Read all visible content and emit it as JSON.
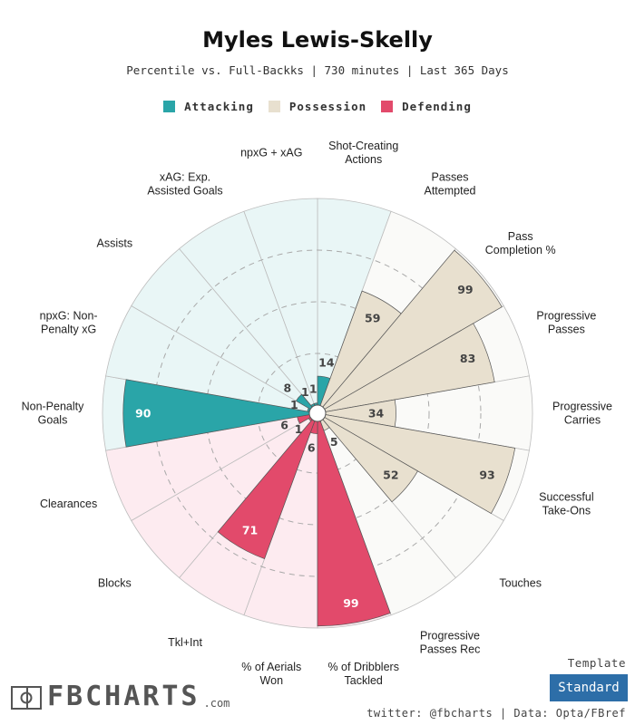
{
  "title": "Myles Lewis-Skelly",
  "subtitle": "Percentile vs. Full-Backks | 730 minutes | Last 365 Days",
  "legend": [
    {
      "label": "Attacking",
      "color": "#2aa5a8"
    },
    {
      "label": "Possession",
      "color": "#e8e0cf"
    },
    {
      "label": "Defending",
      "color": "#e24a6b"
    }
  ],
  "template": {
    "label": "Template",
    "value": "Standard"
  },
  "logo": {
    "text": "FBCHARTS",
    "suffix": ".com"
  },
  "credits": "twitter: @fbcharts | Data: Opta/FBref",
  "colors": {
    "attacking_fill": "#2aa5a8",
    "attacking_bg": "#e9f6f6",
    "possession_fill": "#e8e0cf",
    "possession_bg": "#fafaf8",
    "defending_fill": "#e24a6b",
    "defending_bg": "#fdebf0"
  },
  "chart_data": {
    "type": "polar-bar",
    "scale": [
      0,
      100
    ],
    "grid": "dashed rings at 25, 50, 75",
    "categories": [
      {
        "label": [
          "Shot-Creating",
          "Actions"
        ],
        "value": 14,
        "group": "Attacking"
      },
      {
        "label": [
          "Passes",
          "Attempted"
        ],
        "value": 59,
        "group": "Possession"
      },
      {
        "label": [
          "Pass",
          "Completion %"
        ],
        "value": 99,
        "group": "Possession"
      },
      {
        "label": [
          "Progressive",
          "Passes"
        ],
        "value": 83,
        "group": "Possession"
      },
      {
        "label": [
          "Progressive",
          "Carries"
        ],
        "value": 34,
        "group": "Possession"
      },
      {
        "label": [
          "Successful",
          "Take-Ons"
        ],
        "value": 93,
        "group": "Possession"
      },
      {
        "label": [
          "Touches"
        ],
        "value": 52,
        "group": "Possession"
      },
      {
        "label": [
          "Progressive",
          "Passes Rec"
        ],
        "value": 5,
        "group": "Possession"
      },
      {
        "label": [
          "% of Dribblers",
          "Tackled"
        ],
        "value": 99,
        "group": "Defending"
      },
      {
        "label": [
          "% of Aerials",
          "Won"
        ],
        "value": 6,
        "group": "Defending"
      },
      {
        "label": [
          "Tkl+Int"
        ],
        "value": 71,
        "group": "Defending"
      },
      {
        "label": [
          "Blocks"
        ],
        "value": 1,
        "group": "Defending"
      },
      {
        "label": [
          "Clearances"
        ],
        "value": 6,
        "group": "Defending"
      },
      {
        "label": [
          "Non-Penalty",
          "Goals"
        ],
        "value": 90,
        "group": "Attacking"
      },
      {
        "label": [
          "npxG: Non-",
          "Penalty xG"
        ],
        "value": 1,
        "group": "Attacking"
      },
      {
        "label": [
          "Assists"
        ],
        "value": 8,
        "group": "Attacking"
      },
      {
        "label": [
          "xAG: Exp.",
          "Assisted Goals"
        ],
        "value": 1,
        "group": "Attacking"
      },
      {
        "label": [
          "npxG + xAG"
        ],
        "value": 1,
        "group": "Attacking"
      }
    ]
  }
}
